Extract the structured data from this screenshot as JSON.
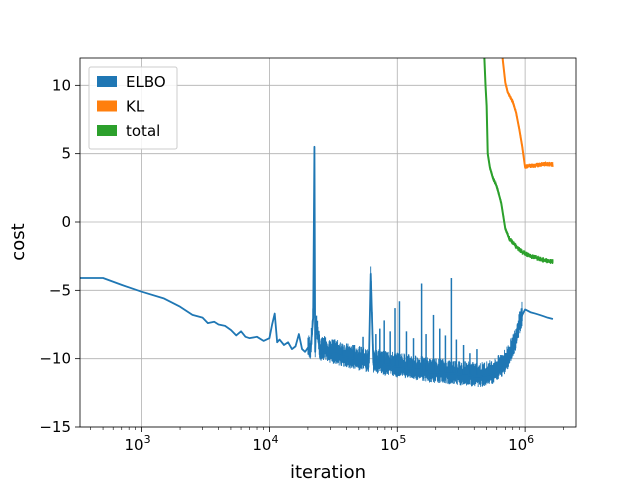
{
  "chart_data": {
    "type": "line",
    "title": "",
    "xlabel": "iteration",
    "ylabel": "cost",
    "xscale": "log",
    "xlim": [
      330,
      2500000
    ],
    "ylim": [
      -15,
      12
    ],
    "grid": true,
    "legend_position": "top-left",
    "x_ticks": [
      {
        "value": 1000,
        "base": "10",
        "exp": "3"
      },
      {
        "value": 10000,
        "base": "10",
        "exp": "4"
      },
      {
        "value": 100000,
        "base": "10",
        "exp": "5"
      },
      {
        "value": 1000000,
        "base": "10",
        "exp": "6"
      }
    ],
    "y_ticks": [
      {
        "value": -15,
        "label": "−15"
      },
      {
        "value": -10,
        "label": "−10"
      },
      {
        "value": -5,
        "label": "−5"
      },
      {
        "value": 0,
        "label": "0"
      },
      {
        "value": 5,
        "label": "5"
      },
      {
        "value": 10,
        "label": "10"
      }
    ],
    "series": [
      {
        "name": "ELBO",
        "color": "#1f77b4",
        "x": [
          330,
          500,
          700,
          1000,
          1500,
          2000,
          2500,
          3000,
          3300,
          3700,
          4000,
          4500,
          5000,
          5500,
          6000,
          6500,
          7000,
          8000,
          9000,
          10000,
          10500,
          11000,
          11500,
          12000,
          13000,
          14000,
          15000,
          16000,
          17000,
          18000,
          19000,
          20000,
          21000,
          22000,
          22500,
          22800,
          23200,
          25000,
          27000,
          30000,
          33000,
          36000,
          40000,
          45000,
          50000,
          55000,
          60000,
          62000,
          65000,
          70000,
          75000,
          80000,
          85000,
          90000,
          100000,
          110000,
          120000,
          130000,
          140000,
          150000,
          160000,
          170000,
          180000,
          200000,
          220000,
          250000,
          280000,
          320000,
          360000,
          400000,
          450000,
          500000,
          550000,
          600000,
          650000,
          700000,
          750000,
          800000,
          850000,
          900000,
          950000,
          1000000,
          1050000,
          1100000,
          1200000,
          1300000,
          1400000,
          1500000,
          1650000
        ],
        "values": [
          -4.1,
          -4.1,
          -4.6,
          -5.1,
          -5.6,
          -6.2,
          -6.8,
          -7.0,
          -7.4,
          -7.3,
          -7.5,
          -7.6,
          -7.9,
          -8.3,
          -8.0,
          -8.4,
          -8.5,
          -8.4,
          -8.7,
          -8.5,
          -7.5,
          -6.7,
          -8.8,
          -8.6,
          -9.0,
          -8.8,
          -9.3,
          -9.1,
          -8.2,
          -9.3,
          -9.5,
          -9.2,
          -9.4,
          -7.0,
          5.5,
          -9.5,
          -7.3,
          -9.6,
          -9.3,
          -9.7,
          -9.6,
          -9.8,
          -9.9,
          -10.0,
          -10.1,
          -10.2,
          -10.3,
          -3.8,
          -10.3,
          -10.4,
          -10.3,
          -10.5,
          -10.4,
          -10.5,
          -10.6,
          -10.6,
          -10.7,
          -10.7,
          -10.8,
          -10.8,
          -10.9,
          -10.9,
          -11.0,
          -11.0,
          -11.0,
          -11.1,
          -11.1,
          -11.2,
          -11.2,
          -11.3,
          -11.3,
          -11.2,
          -11.1,
          -10.9,
          -10.6,
          -10.3,
          -9.8,
          -9.3,
          -8.5,
          -7.5,
          -6.8,
          -6.4,
          -6.5,
          -6.6,
          -6.7,
          -6.8,
          -6.9,
          -7.0,
          -7.1
        ]
      },
      {
        "name": "KL",
        "color": "#ff7f0e",
        "x": [
          660000,
          670000,
          700000,
          730000,
          760000,
          800000,
          850000,
          900000,
          950000,
          1000000,
          1050000,
          1100000,
          1200000,
          1300000,
          1450000,
          1650000
        ],
        "values": [
          12.5,
          11.8,
          10.2,
          9.5,
          9.2,
          8.8,
          8.0,
          6.8,
          5.5,
          4.0,
          4.1,
          4.1,
          4.15,
          4.2,
          4.25,
          4.2
        ],
        "noise": 0.18
      },
      {
        "name": "total",
        "color": "#2ca02c",
        "x": [
          480000,
          490000,
          500000,
          510000,
          530000,
          560000,
          600000,
          650000,
          700000,
          750000,
          800000,
          850000,
          900000,
          950000,
          1000000,
          1100000,
          1200000,
          1350000,
          1500000,
          1650000
        ],
        "values": [
          12.0,
          10.0,
          8.5,
          5.0,
          4.0,
          3.2,
          2.6,
          1.4,
          -0.5,
          -1.2,
          -1.5,
          -1.8,
          -2.0,
          -2.2,
          -2.3,
          -2.5,
          -2.6,
          -2.75,
          -2.85,
          -2.9
        ],
        "noise": 0.2
      }
    ],
    "elbo_noise": {
      "start_x": 20000,
      "end_x": 950000,
      "lower_offset": -0.6,
      "spikes": [
        {
          "x": 31000,
          "y": -8.6
        },
        {
          "x": 37000,
          "y": -8.9
        },
        {
          "x": 46000,
          "y": -9.0
        },
        {
          "x": 54000,
          "y": -8.4
        },
        {
          "x": 68000,
          "y": -8.2
        },
        {
          "x": 73000,
          "y": -7.8
        },
        {
          "x": 79000,
          "y": -7.2
        },
        {
          "x": 88000,
          "y": -8.0
        },
        {
          "x": 96000,
          "y": -6.3
        },
        {
          "x": 104000,
          "y": -5.8
        },
        {
          "x": 118000,
          "y": -8.0
        },
        {
          "x": 134000,
          "y": -8.5
        },
        {
          "x": 155000,
          "y": -4.5
        },
        {
          "x": 168000,
          "y": -8.2
        },
        {
          "x": 192000,
          "y": -6.8
        },
        {
          "x": 215000,
          "y": -7.8
        },
        {
          "x": 238000,
          "y": -8.3
        },
        {
          "x": 265000,
          "y": -4.1
        },
        {
          "x": 290000,
          "y": -8.6
        },
        {
          "x": 330000,
          "y": -9.0
        },
        {
          "x": 370000,
          "y": -9.6
        },
        {
          "x": 420000,
          "y": -9.3
        }
      ]
    }
  }
}
